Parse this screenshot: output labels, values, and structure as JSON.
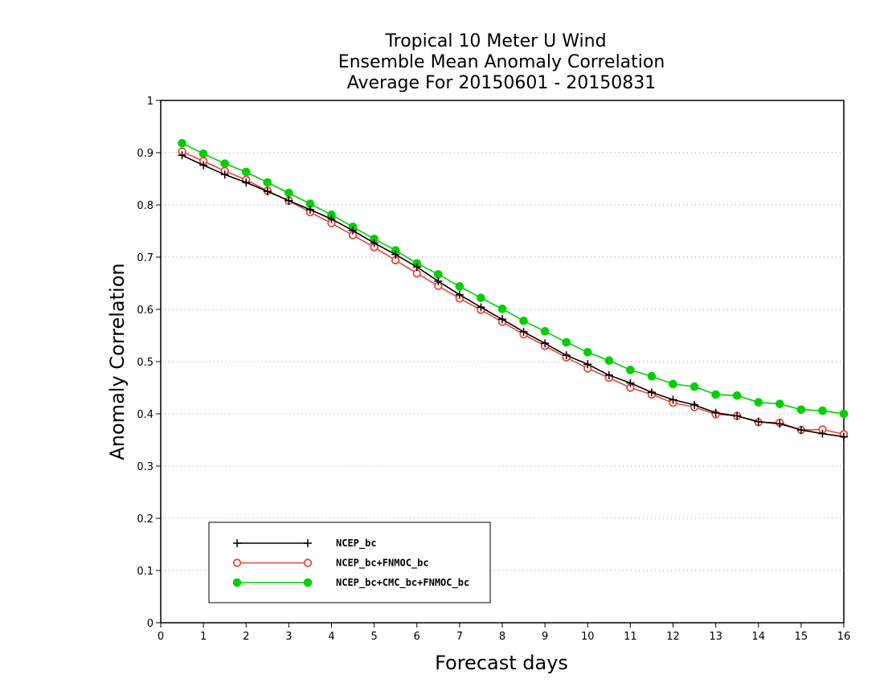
{
  "chart_data": {
    "type": "line",
    "title": [
      "Tropical 10 Meter U Wind",
      "Ensemble Mean Anomaly Correlation",
      "Average For 20150601 - 20150831"
    ],
    "xlabel": "Forecast days",
    "ylabel": "Anomaly Correlation",
    "xlim": [
      0,
      16
    ],
    "ylim": [
      0,
      1
    ],
    "xticks": [
      0,
      1,
      2,
      3,
      4,
      5,
      6,
      7,
      8,
      9,
      10,
      11,
      12,
      13,
      14,
      15,
      16
    ],
    "yticks": [
      0,
      0.1,
      0.2,
      0.3,
      0.4,
      0.5,
      0.6,
      0.7,
      0.8,
      0.9,
      1
    ],
    "grid": "horizontal dotted",
    "legend_position": "lower-left",
    "x": [
      0.5,
      1,
      1.5,
      2,
      2.5,
      3,
      3.5,
      4,
      4.5,
      5,
      5.5,
      6,
      6.5,
      7,
      7.5,
      8,
      8.5,
      9,
      9.5,
      10,
      10.5,
      11,
      11.5,
      12,
      12.5,
      13,
      13.5,
      14,
      14.5,
      15,
      15.5,
      16
    ],
    "series": [
      {
        "name": "NCEP_bc",
        "color": "#000000",
        "marker": "plus",
        "values": [
          0.895,
          0.876,
          0.858,
          0.843,
          0.826,
          0.808,
          0.791,
          0.773,
          0.751,
          0.727,
          0.705,
          0.681,
          0.654,
          0.628,
          0.604,
          0.581,
          0.557,
          0.535,
          0.512,
          0.495,
          0.474,
          0.459,
          0.441,
          0.427,
          0.417,
          0.402,
          0.396,
          0.385,
          0.381,
          0.369,
          0.362,
          0.356
        ]
      },
      {
        "name": "NCEP_bc+FNMOC_bc",
        "color": "#e8473d",
        "marker": "open-circle",
        "values": [
          0.902,
          0.884,
          0.865,
          0.848,
          0.827,
          0.808,
          0.786,
          0.765,
          0.742,
          0.719,
          0.694,
          0.669,
          0.645,
          0.621,
          0.599,
          0.576,
          0.552,
          0.53,
          0.508,
          0.487,
          0.469,
          0.45,
          0.437,
          0.421,
          0.413,
          0.399,
          0.396,
          0.384,
          0.383,
          0.369,
          0.37,
          0.361
        ]
      },
      {
        "name": "NCEP_bc+CMC_bc+FNMOC_bc",
        "color": "#00d000",
        "marker": "filled-circle",
        "values": [
          0.918,
          0.898,
          0.879,
          0.863,
          0.843,
          0.823,
          0.802,
          0.781,
          0.758,
          0.735,
          0.713,
          0.688,
          0.667,
          0.644,
          0.622,
          0.601,
          0.578,
          0.558,
          0.537,
          0.518,
          0.502,
          0.484,
          0.472,
          0.457,
          0.452,
          0.437,
          0.435,
          0.422,
          0.419,
          0.408,
          0.406,
          0.4
        ]
      }
    ]
  }
}
